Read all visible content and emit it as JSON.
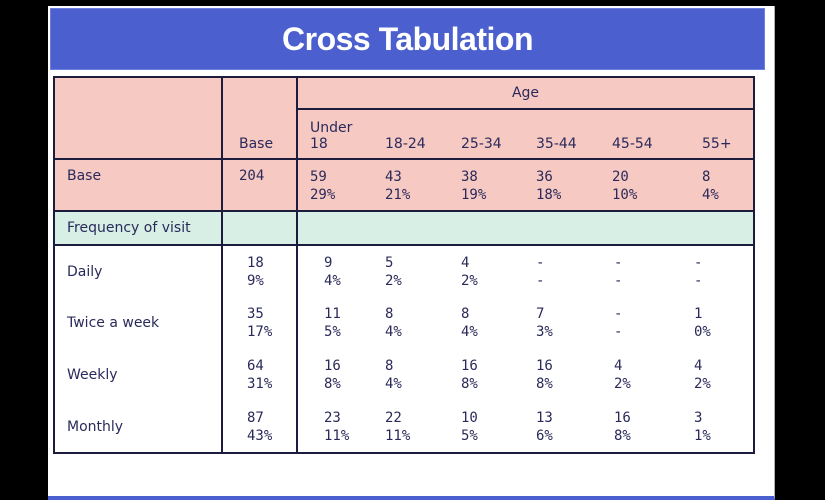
{
  "title": "Cross Tabulation",
  "table": {
    "age_header": "Age",
    "base_header": "Base",
    "columns": [
      "Under\n18",
      "18-24",
      "25-34",
      "35-44",
      "45-54",
      "55+"
    ],
    "base_row": {
      "label": "Base",
      "base": "204",
      "cells": [
        {
          "n": "59",
          "p": "29%"
        },
        {
          "n": "43",
          "p": "21%"
        },
        {
          "n": "38",
          "p": "19%"
        },
        {
          "n": "36",
          "p": "18%"
        },
        {
          "n": "20",
          "p": "10%"
        },
        {
          "n": "8",
          "p": "4%"
        }
      ]
    },
    "section_label": "Frequency of visit",
    "rows": [
      {
        "label": "Daily",
        "base": {
          "n": "18",
          "p": "9%"
        },
        "cells": [
          {
            "n": "9",
            "p": "4%"
          },
          {
            "n": "5",
            "p": "2%"
          },
          {
            "n": "4",
            "p": "2%"
          },
          {
            "n": "-",
            "p": "-"
          },
          {
            "n": "-",
            "p": "-"
          },
          {
            "n": "-",
            "p": "-"
          }
        ]
      },
      {
        "label": "Twice a week",
        "base": {
          "n": "35",
          "p": "17%"
        },
        "cells": [
          {
            "n": "11",
            "p": "5%"
          },
          {
            "n": "8",
            "p": "4%"
          },
          {
            "n": "8",
            "p": "4%"
          },
          {
            "n": "7",
            "p": "3%"
          },
          {
            "n": "-",
            "p": "-"
          },
          {
            "n": "1",
            "p": "0%"
          }
        ]
      },
      {
        "label": "Weekly",
        "base": {
          "n": "64",
          "p": "31%"
        },
        "cells": [
          {
            "n": "16",
            "p": "8%"
          },
          {
            "n": "8",
            "p": "4%"
          },
          {
            "n": "16",
            "p": "8%"
          },
          {
            "n": "16",
            "p": "8%"
          },
          {
            "n": "4",
            "p": "2%"
          },
          {
            "n": "4",
            "p": "2%"
          }
        ]
      },
      {
        "label": "Monthly",
        "base": {
          "n": "87",
          "p": "43%"
        },
        "cells": [
          {
            "n": "23",
            "p": "11%"
          },
          {
            "n": "22",
            "p": "11%"
          },
          {
            "n": "10",
            "p": "5%"
          },
          {
            "n": "13",
            "p": "6%"
          },
          {
            "n": "16",
            "p": "8%"
          },
          {
            "n": "3",
            "p": "1%"
          }
        ]
      }
    ]
  }
}
